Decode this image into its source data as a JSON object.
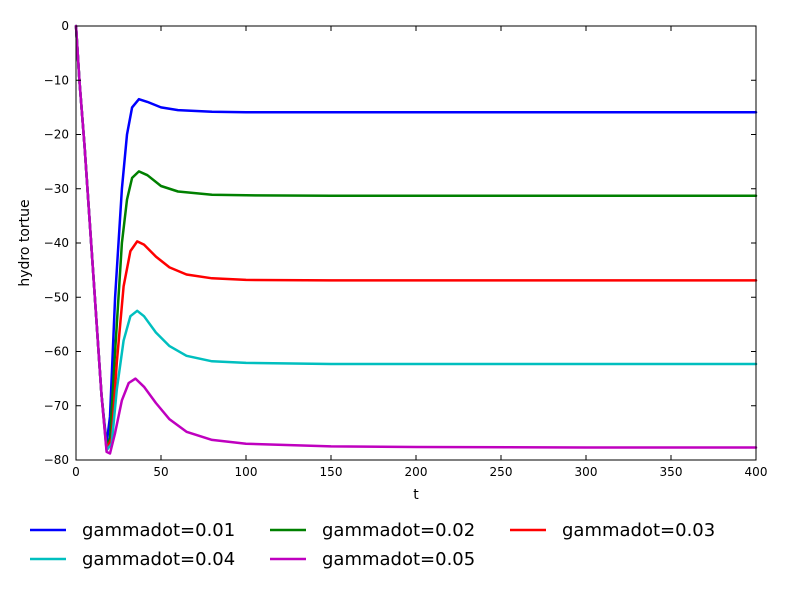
{
  "chart_data": {
    "type": "line",
    "xlabel": "t",
    "ylabel": "hydro tortue",
    "xlim": [
      0,
      400
    ],
    "ylim": [
      -80,
      0
    ],
    "x_ticks": [
      0,
      50,
      100,
      150,
      200,
      250,
      300,
      350,
      400
    ],
    "y_ticks": [
      0,
      -10,
      -20,
      -30,
      -40,
      -50,
      -60,
      -70,
      -80
    ],
    "x_tick_labels": [
      "0",
      "50",
      "100",
      "150",
      "200",
      "250",
      "300",
      "350",
      "400"
    ],
    "y_tick_labels": [
      "0",
      "−10",
      "−20",
      "−30",
      "−40",
      "−50",
      "−60",
      "−70",
      "−80"
    ],
    "grid": false,
    "legend_position": "bottom",
    "series": [
      {
        "name": "gammadot=0.01",
        "color": "#0000ff",
        "points": [
          [
            0,
            0
          ],
          [
            2,
            -10
          ],
          [
            5,
            -22
          ],
          [
            10,
            -45
          ],
          [
            15,
            -68
          ],
          [
            18,
            -77
          ],
          [
            20,
            -72
          ],
          [
            23,
            -50
          ],
          [
            27,
            -30
          ],
          [
            30,
            -20
          ],
          [
            33,
            -15
          ],
          [
            37,
            -13.5
          ],
          [
            42,
            -14
          ],
          [
            50,
            -15
          ],
          [
            60,
            -15.5
          ],
          [
            80,
            -15.8
          ],
          [
            100,
            -15.9
          ],
          [
            150,
            -15.9
          ],
          [
            200,
            -15.9
          ],
          [
            300,
            -15.9
          ],
          [
            400,
            -15.9
          ]
        ]
      },
      {
        "name": "gammadot=0.02",
        "color": "#008000",
        "points": [
          [
            0,
            0
          ],
          [
            2,
            -10
          ],
          [
            5,
            -22
          ],
          [
            10,
            -45
          ],
          [
            15,
            -68
          ],
          [
            18,
            -77.5
          ],
          [
            20,
            -76
          ],
          [
            23,
            -60
          ],
          [
            27,
            -40
          ],
          [
            30,
            -32
          ],
          [
            33,
            -28
          ],
          [
            37,
            -26.8
          ],
          [
            42,
            -27.5
          ],
          [
            50,
            -29.5
          ],
          [
            60,
            -30.5
          ],
          [
            80,
            -31.1
          ],
          [
            100,
            -31.2
          ],
          [
            150,
            -31.3
          ],
          [
            200,
            -31.3
          ],
          [
            300,
            -31.3
          ],
          [
            400,
            -31.3
          ]
        ]
      },
      {
        "name": "gammadot=0.03",
        "color": "#ff0000",
        "points": [
          [
            0,
            0
          ],
          [
            2,
            -10
          ],
          [
            5,
            -22
          ],
          [
            10,
            -45
          ],
          [
            15,
            -68
          ],
          [
            18,
            -78
          ],
          [
            21,
            -76
          ],
          [
            24,
            -62
          ],
          [
            28,
            -48
          ],
          [
            32,
            -41.5
          ],
          [
            36,
            -39.7
          ],
          [
            40,
            -40.3
          ],
          [
            47,
            -42.5
          ],
          [
            55,
            -44.5
          ],
          [
            65,
            -45.8
          ],
          [
            80,
            -46.5
          ],
          [
            100,
            -46.8
          ],
          [
            150,
            -46.9
          ],
          [
            200,
            -46.9
          ],
          [
            300,
            -46.9
          ],
          [
            400,
            -46.9
          ]
        ]
      },
      {
        "name": "gammadot=0.04",
        "color": "#00bfbf",
        "points": [
          [
            0,
            0
          ],
          [
            2,
            -10
          ],
          [
            5,
            -22
          ],
          [
            10,
            -45
          ],
          [
            15,
            -68
          ],
          [
            18,
            -78.2
          ],
          [
            21,
            -77
          ],
          [
            24,
            -67
          ],
          [
            28,
            -58
          ],
          [
            32,
            -53.5
          ],
          [
            36,
            -52.5
          ],
          [
            40,
            -53.5
          ],
          [
            47,
            -56.5
          ],
          [
            55,
            -59
          ],
          [
            65,
            -60.8
          ],
          [
            80,
            -61.8
          ],
          [
            100,
            -62.1
          ],
          [
            150,
            -62.3
          ],
          [
            200,
            -62.3
          ],
          [
            300,
            -62.3
          ],
          [
            400,
            -62.3
          ]
        ]
      },
      {
        "name": "gammadot=0.05",
        "color": "#bf00bf",
        "points": [
          [
            0,
            0
          ],
          [
            2,
            -10
          ],
          [
            5,
            -22
          ],
          [
            10,
            -45
          ],
          [
            15,
            -68
          ],
          [
            18,
            -78.5
          ],
          [
            20,
            -78.8
          ],
          [
            23,
            -75
          ],
          [
            27,
            -69
          ],
          [
            31,
            -65.8
          ],
          [
            35,
            -65
          ],
          [
            40,
            -66.5
          ],
          [
            47,
            -69.5
          ],
          [
            55,
            -72.5
          ],
          [
            65,
            -74.8
          ],
          [
            80,
            -76.3
          ],
          [
            100,
            -77
          ],
          [
            150,
            -77.5
          ],
          [
            200,
            -77.6
          ],
          [
            300,
            -77.7
          ],
          [
            400,
            -77.7
          ]
        ]
      }
    ]
  }
}
